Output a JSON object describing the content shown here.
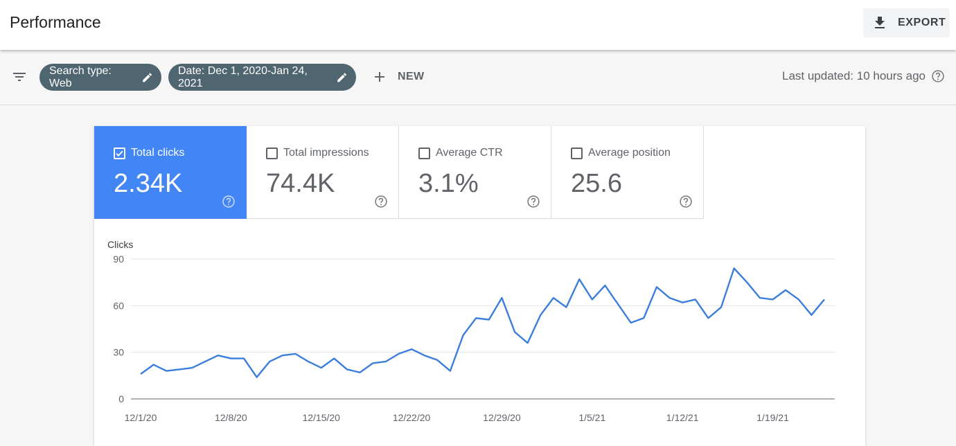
{
  "header": {
    "title": "Performance",
    "export_label": "EXPORT"
  },
  "filters": {
    "search_type_chip": "Search type: Web",
    "date_chip": "Date: Dec 1, 2020-Jan 24, 2021",
    "new_label": "NEW",
    "last_updated": "Last updated: 10 hours ago"
  },
  "metrics": [
    {
      "label": "Total clicks",
      "value": "2.34K",
      "checked": true
    },
    {
      "label": "Total impressions",
      "value": "74.4K",
      "checked": false
    },
    {
      "label": "Average CTR",
      "value": "3.1%",
      "checked": false
    },
    {
      "label": "Average position",
      "value": "25.6",
      "checked": false
    }
  ],
  "colors": {
    "accent": "#4285f4",
    "chip": "#4f6570",
    "line": "#3b7ddd"
  },
  "chart_data": {
    "type": "line",
    "title": "",
    "ylabel": "Clicks",
    "xlabel": "",
    "ylim": [
      0,
      90
    ],
    "yticks": [
      0,
      30,
      60,
      90
    ],
    "xtick_labels": [
      "12/1/20",
      "12/8/20",
      "12/15/20",
      "12/22/20",
      "12/29/20",
      "1/5/21",
      "1/12/21",
      "1/19/21"
    ],
    "xtick_index": [
      0,
      7,
      14,
      21,
      28,
      35,
      42,
      49
    ],
    "grid": true,
    "series": [
      {
        "values": [
          16,
          22,
          18,
          19,
          20,
          24,
          28,
          26,
          26,
          14,
          24,
          28,
          29,
          24,
          20,
          26,
          19,
          17,
          23,
          24,
          29,
          32,
          28,
          25,
          18,
          41,
          52,
          51,
          65,
          43,
          36,
          54,
          65,
          59,
          77,
          64,
          73,
          61,
          49,
          52,
          72,
          65,
          62,
          64,
          52,
          59,
          84,
          75,
          65,
          64,
          70,
          64,
          54,
          64
        ]
      }
    ]
  }
}
